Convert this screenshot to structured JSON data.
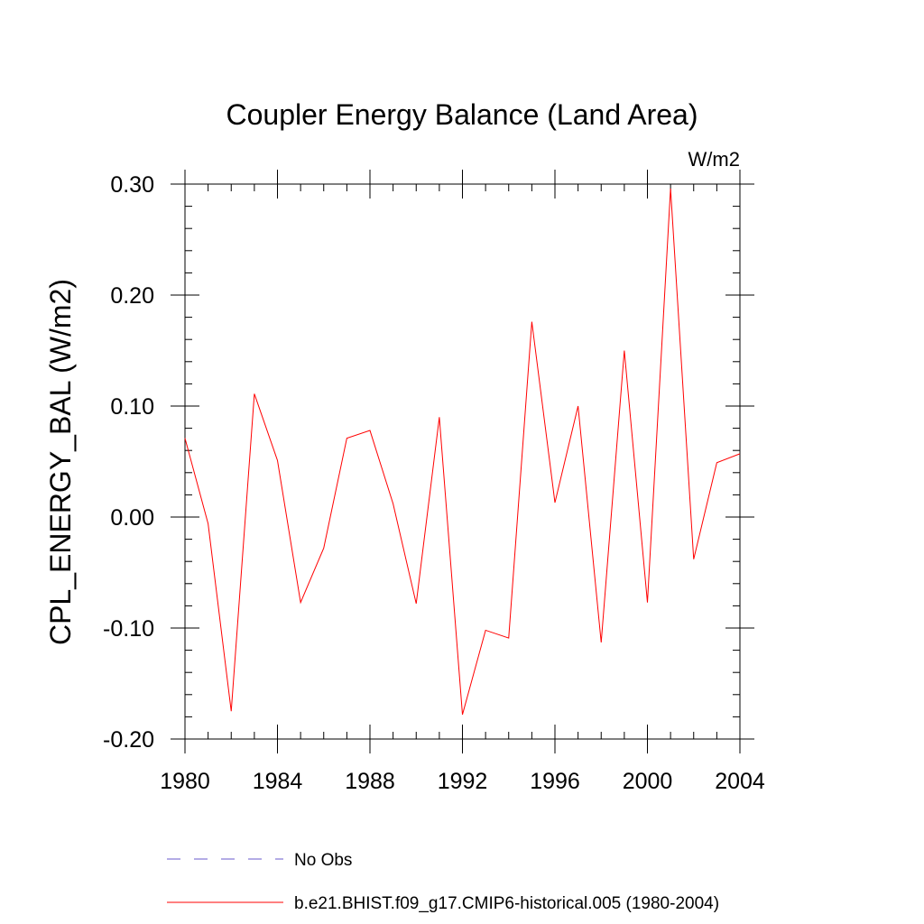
{
  "chart_data": {
    "type": "line",
    "title": "Coupler Energy Balance (Land Area)",
    "units": "W/m2",
    "ylabel": "CPL_ENERGY_BAL  (W/m2)",
    "xlabel": "",
    "xlim": [
      1980,
      2004
    ],
    "ylim": [
      -0.2,
      0.3
    ],
    "x_ticks": [
      1980,
      1984,
      1988,
      1992,
      1996,
      2000,
      2004
    ],
    "x_tick_labels": [
      "1980",
      "1984",
      "1988",
      "1992",
      "1996",
      "2000",
      "2004"
    ],
    "y_ticks": [
      -0.2,
      -0.1,
      0.0,
      0.1,
      0.2,
      0.3
    ],
    "y_tick_labels": [
      "-0.20",
      "-0.10",
      "0.00",
      "0.10",
      "0.20",
      "0.30"
    ],
    "grid": false,
    "legend_position": "bottom",
    "legend": [
      {
        "label": "No Obs",
        "color": "#6a5acd",
        "dashed": true
      },
      {
        "label": "b.e21.BHIST.f09_g17.CMIP6-historical.005 (1980-2004)",
        "color": "#ff0000",
        "dashed": false
      }
    ],
    "series": [
      {
        "name": "b.e21.BHIST.f09_g17.CMIP6-historical.005 (1980-2004)",
        "color": "#ff0000",
        "x": [
          1980,
          1981,
          1982,
          1983,
          1984,
          1985,
          1986,
          1987,
          1988,
          1989,
          1990,
          1991,
          1992,
          1993,
          1994,
          1995,
          1996,
          1997,
          1998,
          1999,
          2000,
          2001,
          2002,
          2003,
          2004
        ],
        "values": [
          0.071,
          -0.006,
          -0.175,
          0.111,
          0.051,
          -0.077,
          -0.028,
          0.071,
          0.078,
          0.012,
          -0.078,
          0.09,
          -0.178,
          -0.102,
          -0.109,
          0.176,
          0.013,
          0.1,
          -0.113,
          0.15,
          -0.077,
          0.296,
          -0.038,
          0.049,
          0.057
        ]
      }
    ]
  }
}
